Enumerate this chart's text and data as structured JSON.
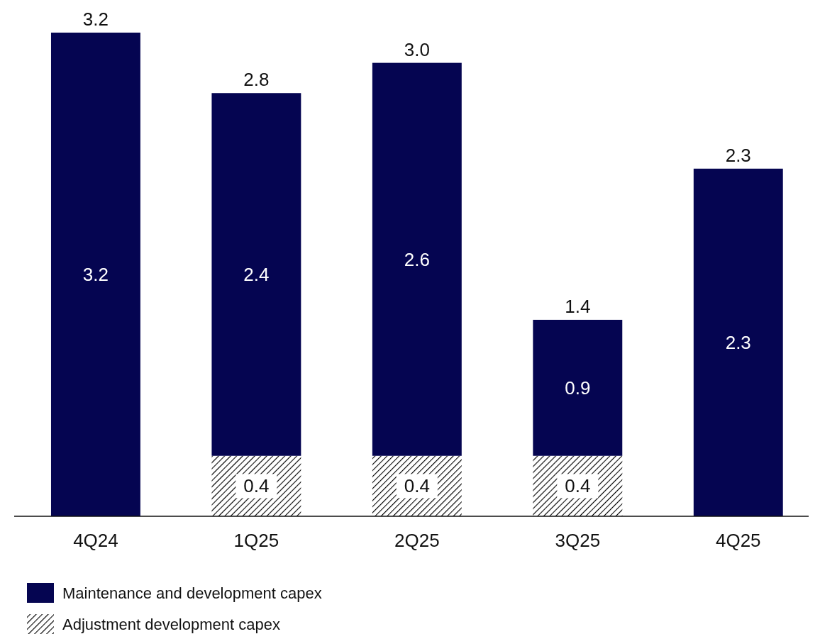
{
  "chart_data": {
    "type": "bar",
    "stacked": true,
    "categories": [
      "4Q24",
      "1Q25",
      "2Q25",
      "3Q25",
      "4Q25"
    ],
    "series": [
      {
        "name": "Adjustment development capex",
        "color": "#000000",
        "values": [
          null,
          0.4,
          0.4,
          0.4,
          null
        ]
      },
      {
        "name": "Maintenance and development capex",
        "color": "#050551",
        "values": [
          3.2,
          2.4,
          2.6,
          0.9,
          2.3
        ]
      }
    ],
    "data_labels": true,
    "totals": [
      "3.2",
      "2.8",
      "3.0",
      "1.4",
      "2.3"
    ],
    "legend": "bottom left"
  }
}
